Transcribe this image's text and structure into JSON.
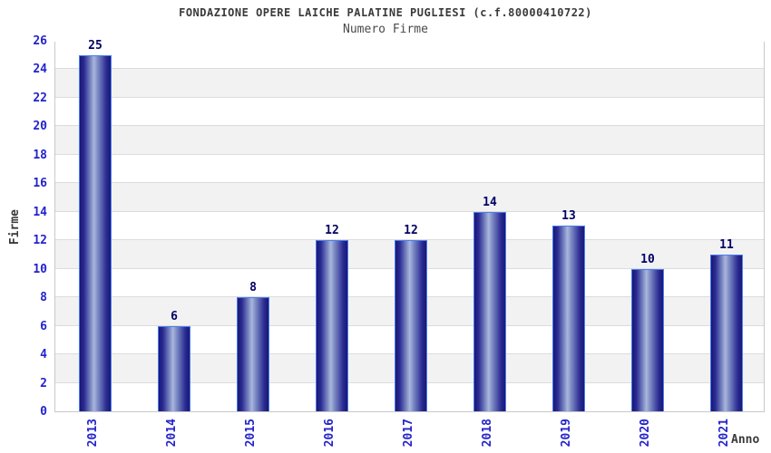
{
  "chart_data": {
    "type": "bar",
    "title": "FONDAZIONE OPERE LAICHE PALATINE PUGLIESI (c.f.80000410722)",
    "subtitle": "Numero Firme",
    "xlabel": "Anno",
    "ylabel": "Firme",
    "categories": [
      "2013",
      "2014",
      "2015",
      "2016",
      "2017",
      "2018",
      "2019",
      "2020",
      "2021"
    ],
    "values": [
      25,
      6,
      8,
      12,
      12,
      14,
      13,
      10,
      11
    ],
    "ylim": [
      0,
      26
    ],
    "ytick_step": 2,
    "yticks": [
      0,
      2,
      4,
      6,
      8,
      10,
      12,
      14,
      16,
      18,
      20,
      22,
      24,
      26
    ],
    "legend": "none",
    "grid": "horizontal-bands-alternating",
    "colors": {
      "tick_label": "#2323cc",
      "value_label": "#000066",
      "text": "#3a3a3a",
      "band_white": "#ffffff",
      "band_gray": "#f2f2f2",
      "gridline": "#dcdcdc",
      "plot_border": "#c9c9c9",
      "bar_edge_dark": "#181874",
      "bar_mid_dark": "#2b2b93",
      "bar_highlight": "#aab6dd",
      "bar_border": "#4a7cf0",
      "background": "#ffffff"
    }
  }
}
